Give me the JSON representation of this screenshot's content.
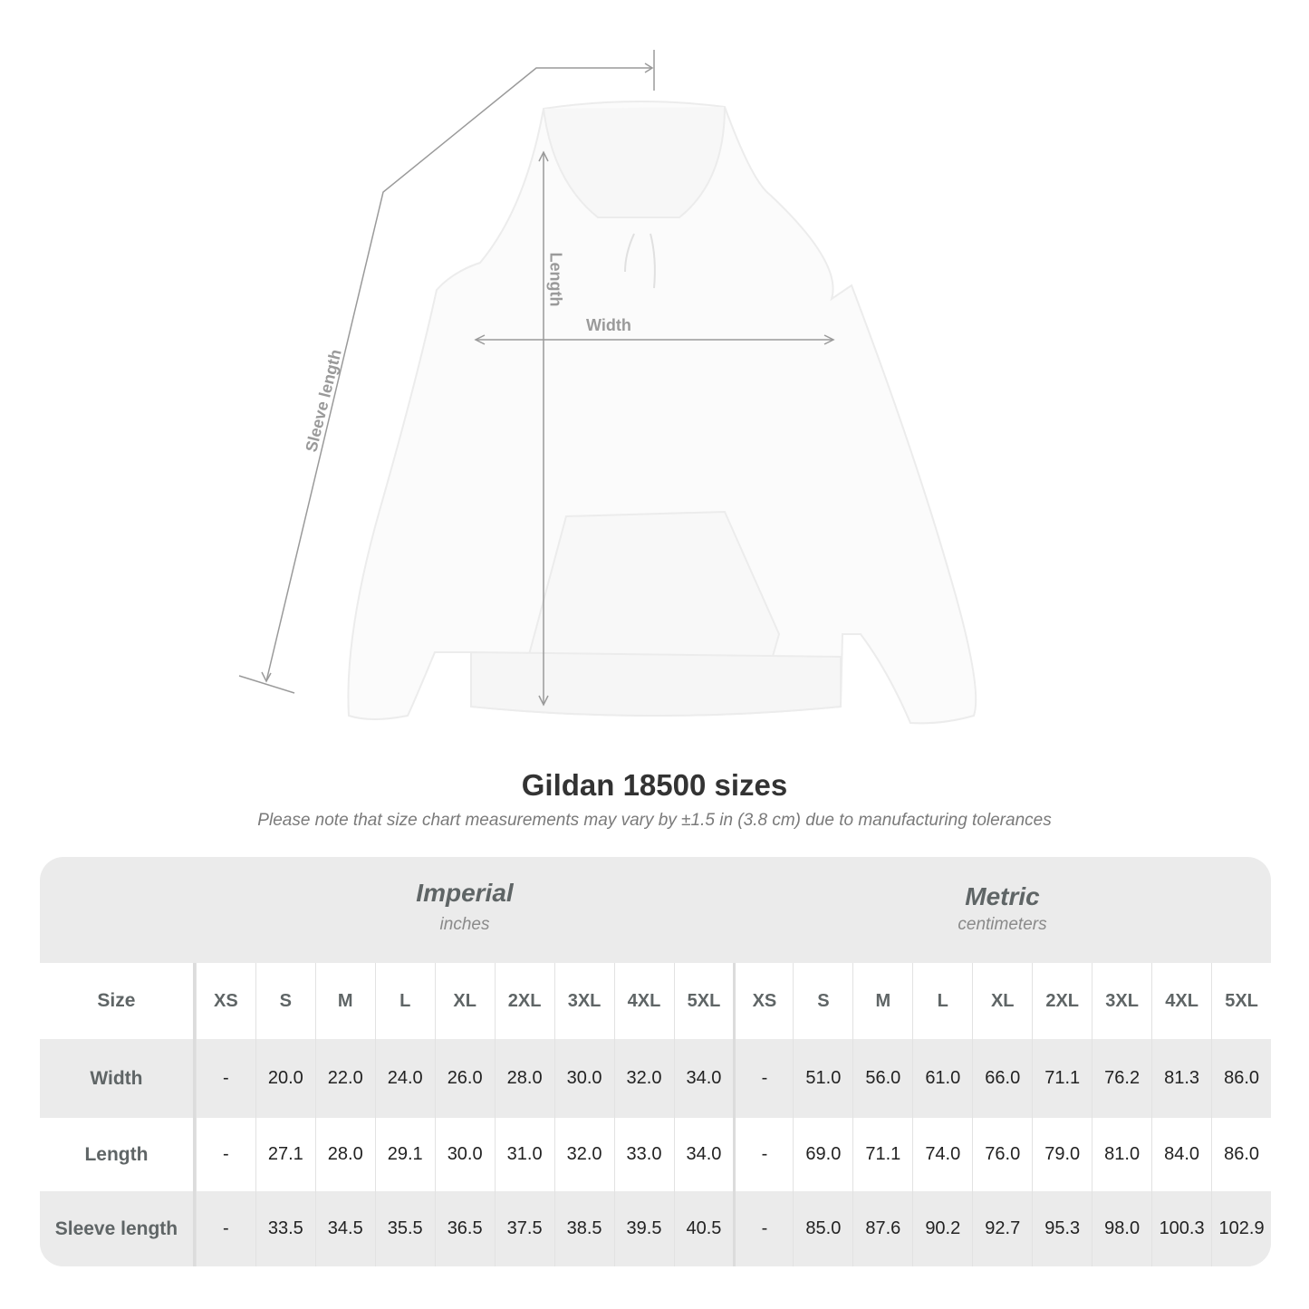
{
  "diagram": {
    "sleeve_label": "Sleeve length",
    "length_label": "Length",
    "width_label": "Width"
  },
  "title": "Gildan 18500 sizes",
  "note": "Please note that size chart measurements may vary by ±1.5 in (3.8 cm) due to manufacturing tolerances",
  "table": {
    "imperial": {
      "title": "Imperial",
      "unit": "inches"
    },
    "metric": {
      "title": "Metric",
      "unit": "centimeters"
    },
    "size_label": "Size",
    "sizes": [
      "XS",
      "S",
      "M",
      "L",
      "XL",
      "2XL",
      "3XL",
      "4XL",
      "5XL"
    ],
    "rows": [
      {
        "label": "Width",
        "imperial": [
          "-",
          "20.0",
          "22.0",
          "24.0",
          "26.0",
          "28.0",
          "30.0",
          "32.0",
          "34.0"
        ],
        "metric": [
          "-",
          "51.0",
          "56.0",
          "61.0",
          "66.0",
          "71.1",
          "76.2",
          "81.3",
          "86.0"
        ]
      },
      {
        "label": "Length",
        "imperial": [
          "-",
          "27.1",
          "28.0",
          "29.1",
          "30.0",
          "31.0",
          "32.0",
          "33.0",
          "34.0"
        ],
        "metric": [
          "-",
          "69.0",
          "71.1",
          "74.0",
          "76.0",
          "79.0",
          "81.0",
          "84.0",
          "86.0"
        ]
      },
      {
        "label": "Sleeve length",
        "imperial": [
          "-",
          "33.5",
          "34.5",
          "35.5",
          "36.5",
          "37.5",
          "38.5",
          "39.5",
          "40.5"
        ],
        "metric": [
          "-",
          "85.0",
          "87.6",
          "90.2",
          "92.7",
          "95.3",
          "98.0",
          "100.3",
          "102.9"
        ]
      }
    ]
  },
  "colors": {
    "band": "#ebebeb",
    "header_text": "#5f6566",
    "line": "#9a9a9a"
  }
}
